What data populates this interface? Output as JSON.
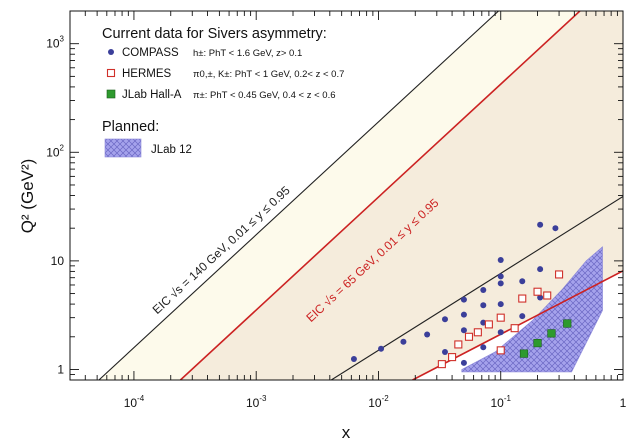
{
  "chart_data": {
    "type": "scatter",
    "xscale": "log",
    "yscale": "log",
    "xlim": [
      3e-05,
      1
    ],
    "ylim": [
      0.8,
      2000
    ],
    "xlabel": "x",
    "ylabel": "Q² (GeV²)",
    "grid": false,
    "legend_position": "top-left",
    "x_ticks": [
      {
        "value": 0.0001,
        "base": "10",
        "exp": "-4"
      },
      {
        "value": 0.001,
        "base": "10",
        "exp": "-3"
      },
      {
        "value": 0.01,
        "base": "10",
        "exp": "-2"
      },
      {
        "value": 0.1,
        "base": "10",
        "exp": "-1"
      },
      {
        "value": 1,
        "base": "1",
        "exp": ""
      }
    ],
    "y_ticks": [
      {
        "value": 1,
        "base": "1",
        "exp": ""
      },
      {
        "value": 10,
        "base": "10",
        "exp": ""
      },
      {
        "value": 100,
        "base": "10",
        "exp": "2"
      },
      {
        "value": 1000,
        "base": "10",
        "exp": "3"
      }
    ],
    "legend": {
      "title_current": "Current data for Sivers asymmetry:",
      "title_planned": "Planned:",
      "entries": [
        {
          "name": "COMPASS",
          "desc": "h±: PhT < 1.6 GeV, z> 0.1",
          "marker": "circle",
          "color": "#3b3f9a"
        },
        {
          "name": "HERMES",
          "desc": "π0,±, K±: PhT < 1 GeV, 0.2< z < 0.7",
          "marker": "open-square",
          "color": "#d0302a"
        },
        {
          "name": "JLab Hall-A",
          "desc": "π±: PhT < 0.45 GeV, 0.4 < z < 0.6",
          "marker": "filled-square",
          "color": "#2e9a2e"
        }
      ],
      "planned_entries": [
        {
          "name": "JLab 12",
          "marker": "hatched-area",
          "color": "#8a87d8"
        }
      ]
    },
    "bands": [
      {
        "name": "EIC √s = 140 GeV, 0.01 ≤ y ≤ 0.95",
        "color": "#222222",
        "label_color": "#222222",
        "upper_line": [
          [
            5.17e-05,
            0.8
          ],
          [
            0.0959,
            2000
          ]
        ],
        "lower_line": [
          [
            0.00411,
            0.8
          ],
          [
            1.0,
            39.2
          ]
        ]
      },
      {
        "name": "EIC √s = 65 GeV, 0.01 ≤ y ≤ 0.95",
        "color": "#cc2222",
        "label_color": "#cc2222",
        "upper_line": [
          [
            0.00024,
            0.8
          ],
          [
            0.444,
            2000
          ]
        ],
        "lower_line": [
          [
            0.019,
            0.8
          ],
          [
            1.0,
            8.1
          ]
        ]
      }
    ],
    "band_fill_colors": [
      "#fdfaeb",
      "#f5ecdc"
    ],
    "series": [
      {
        "name": "COMPASS",
        "marker": "circle",
        "color": "#3b3f9a",
        "points": [
          [
            0.0063,
            1.25
          ],
          [
            0.0105,
            1.55
          ],
          [
            0.016,
            1.8
          ],
          [
            0.025,
            2.1
          ],
          [
            0.035,
            1.45
          ],
          [
            0.035,
            2.9
          ],
          [
            0.05,
            1.15
          ],
          [
            0.05,
            2.3
          ],
          [
            0.05,
            3.2
          ],
          [
            0.05,
            4.4
          ],
          [
            0.072,
            1.6
          ],
          [
            0.072,
            2.7
          ],
          [
            0.072,
            3.9
          ],
          [
            0.072,
            5.4
          ],
          [
            0.1,
            2.2
          ],
          [
            0.1,
            4.0
          ],
          [
            0.1,
            6.2
          ],
          [
            0.1,
            7.2
          ],
          [
            0.1,
            10.2
          ],
          [
            0.15,
            3.1
          ],
          [
            0.15,
            6.5
          ],
          [
            0.21,
            4.6
          ],
          [
            0.21,
            8.4
          ],
          [
            0.21,
            21.5
          ],
          [
            0.28,
            20.0
          ]
        ]
      },
      {
        "name": "HERMES",
        "marker": "open-square",
        "color": "#d0302a",
        "points": [
          [
            0.033,
            1.12
          ],
          [
            0.04,
            1.3
          ],
          [
            0.045,
            1.7
          ],
          [
            0.055,
            2.0
          ],
          [
            0.065,
            2.2
          ],
          [
            0.08,
            2.6
          ],
          [
            0.1,
            1.5
          ],
          [
            0.1,
            3.0
          ],
          [
            0.13,
            2.4
          ],
          [
            0.15,
            4.5
          ],
          [
            0.2,
            5.2
          ],
          [
            0.24,
            4.8
          ],
          [
            0.3,
            7.5
          ]
        ]
      },
      {
        "name": "JLab Hall-A",
        "marker": "filled-square",
        "color": "#2e9a2e",
        "points": [
          [
            0.155,
            1.4
          ],
          [
            0.2,
            1.75
          ],
          [
            0.26,
            2.15
          ],
          [
            0.35,
            2.65
          ]
        ]
      }
    ],
    "planned_areas": [
      {
        "name": "JLab 12",
        "polygon": [
          [
            0.048,
            1.0
          ],
          [
            0.09,
            1.45
          ],
          [
            0.18,
            2.8
          ],
          [
            0.32,
            5.5
          ],
          [
            0.5,
            10.0
          ],
          [
            0.68,
            13.5
          ],
          [
            0.68,
            3.5
          ],
          [
            0.38,
            0.95
          ],
          [
            0.048,
            0.95
          ]
        ]
      }
    ]
  }
}
